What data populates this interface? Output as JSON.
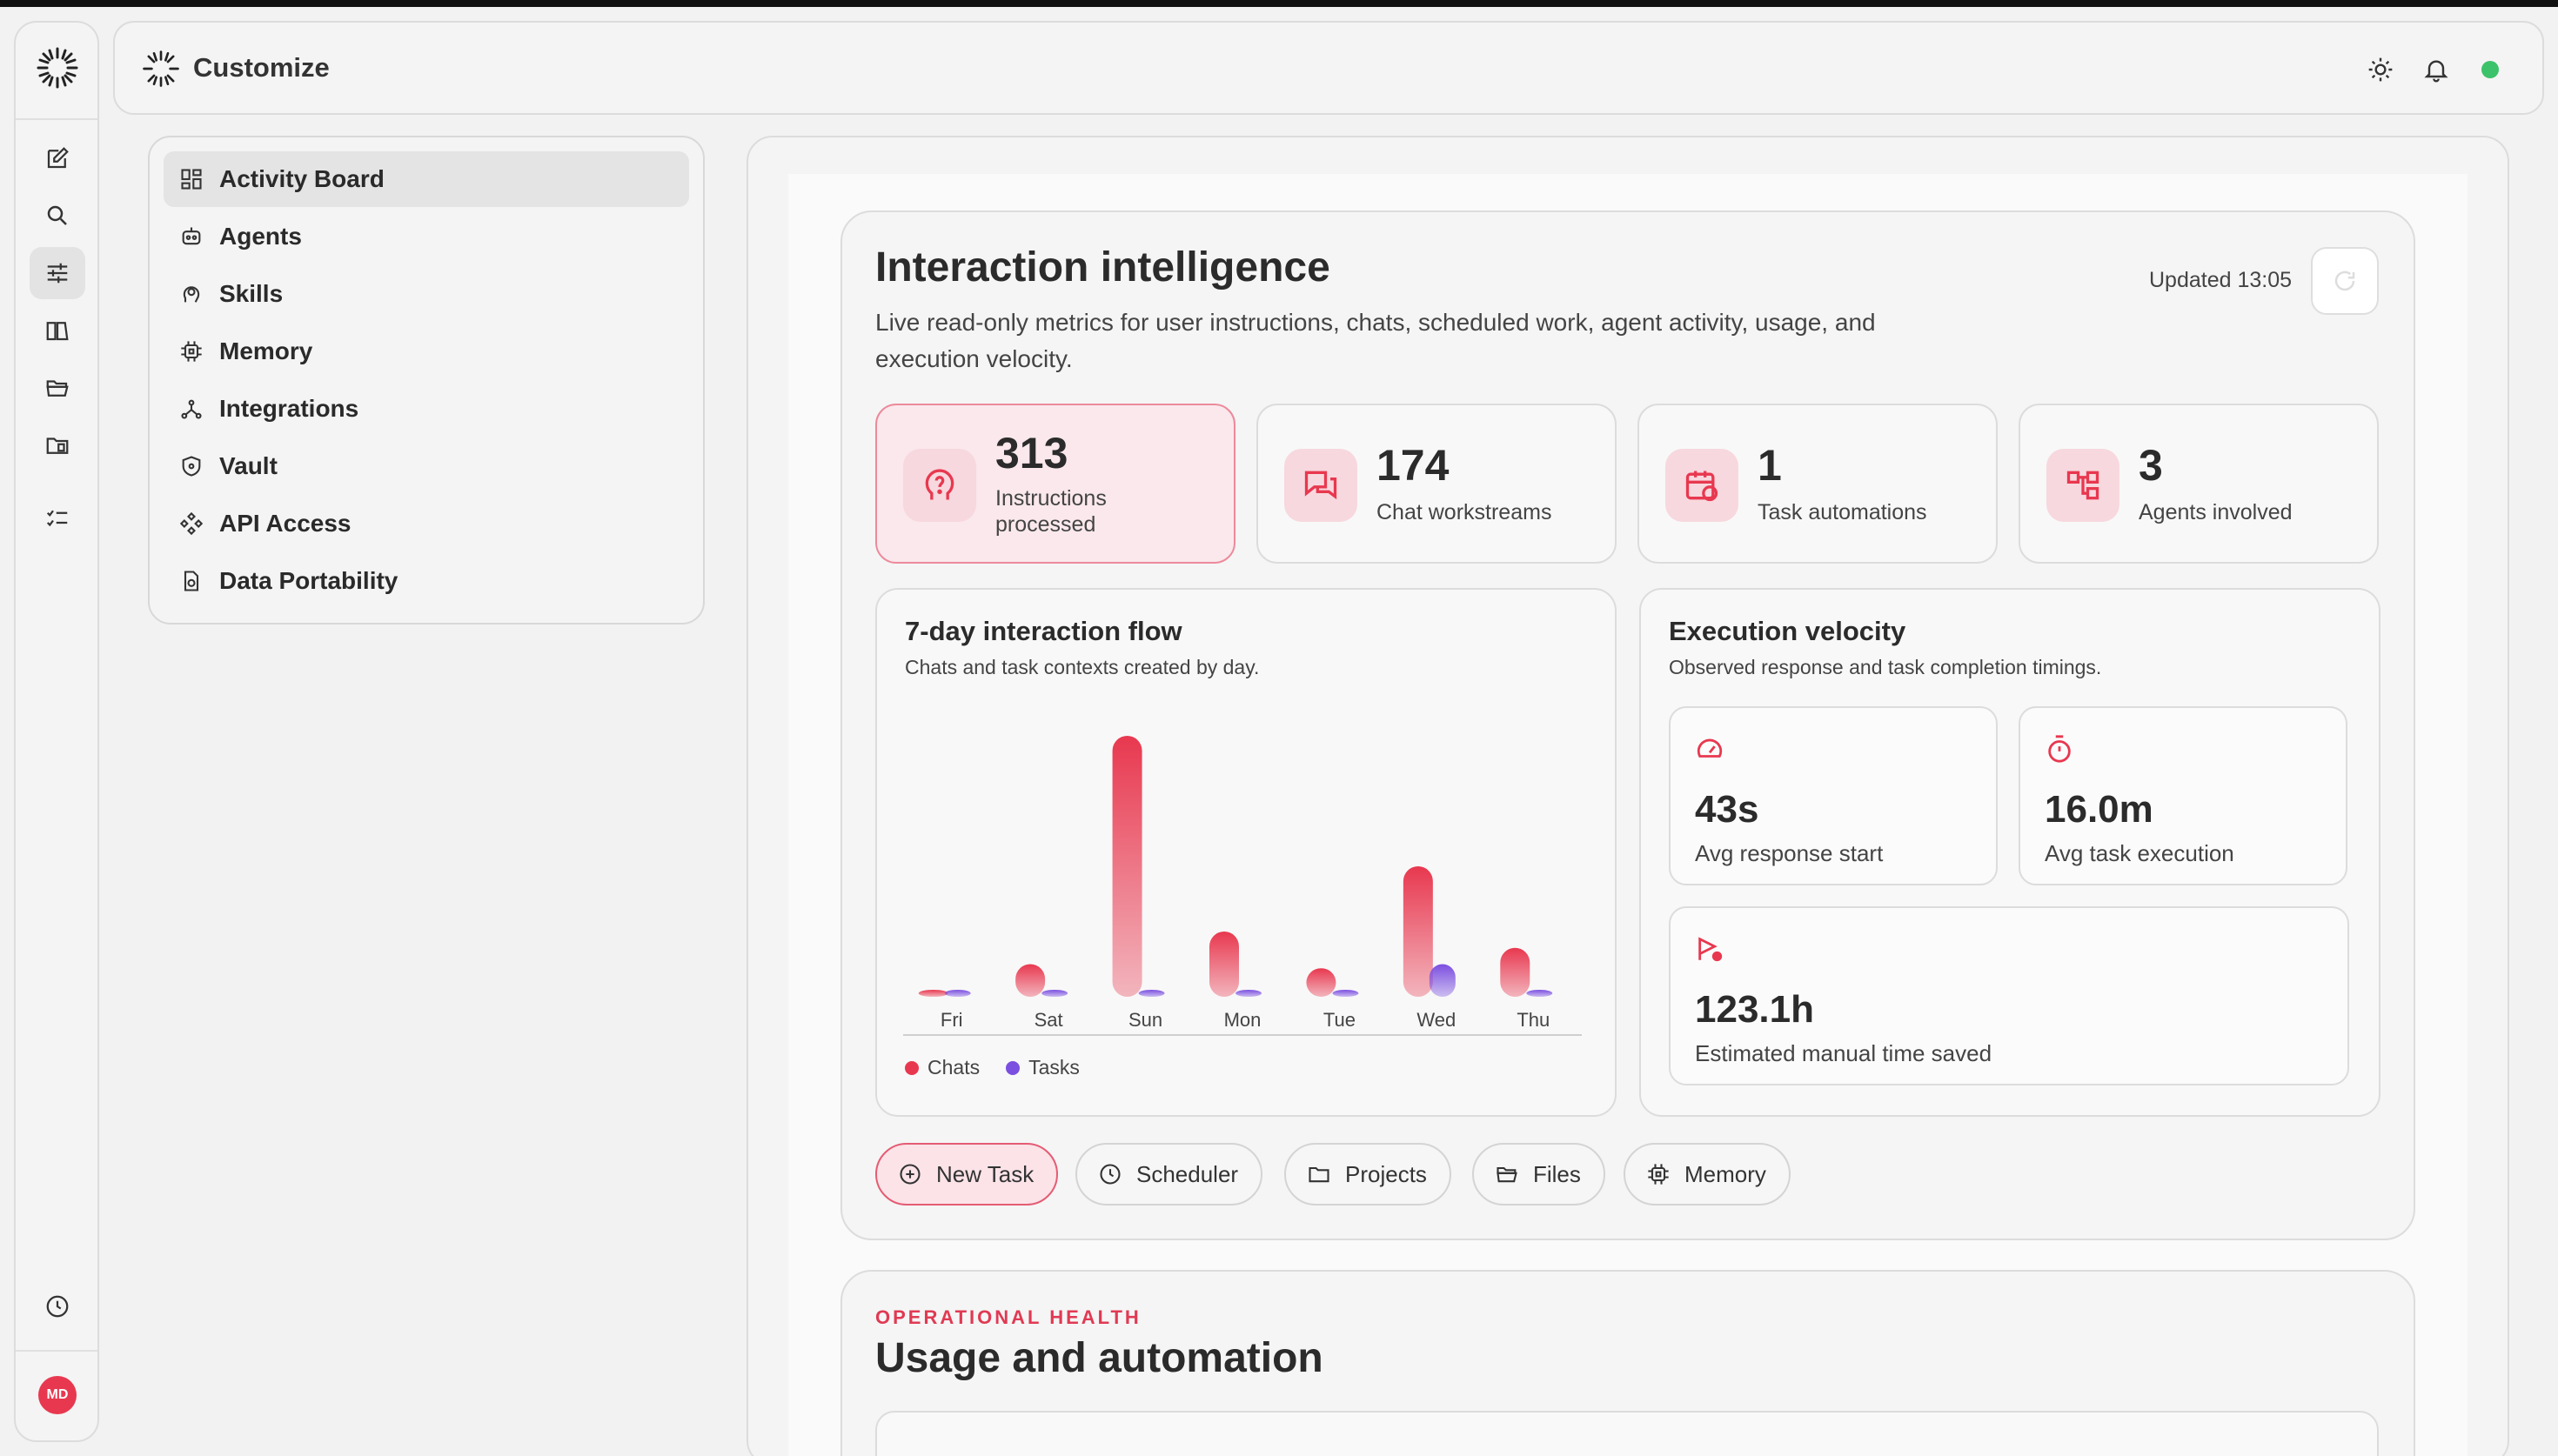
{
  "header": {
    "title": "Customize"
  },
  "user": {
    "initials": "MD"
  },
  "colors": {
    "accent": "#e8384f",
    "chats": "#e8384f",
    "tasks": "#7b4fe0",
    "status_online": "#3cc26a"
  },
  "nav": {
    "items": [
      {
        "label": "Activity Board",
        "icon": "dashboard-icon",
        "active": true
      },
      {
        "label": "Agents",
        "icon": "robot-icon"
      },
      {
        "label": "Skills",
        "icon": "brain-icon"
      },
      {
        "label": "Memory",
        "icon": "chip-icon"
      },
      {
        "label": "Integrations",
        "icon": "network-icon"
      },
      {
        "label": "Vault",
        "icon": "shield-icon"
      },
      {
        "label": "API Access",
        "icon": "api-icon"
      },
      {
        "label": "Data Portability",
        "icon": "file-export-icon"
      }
    ]
  },
  "main": {
    "title": "Interaction intelligence",
    "description": "Live read-only metrics for user instructions, chats, scheduled work, agent activity, usage, and execution velocity.",
    "updated": "Updated 13:05",
    "stats": [
      {
        "value": "313",
        "label": "Instructions processed",
        "icon": "question-head-icon"
      },
      {
        "value": "174",
        "label": "Chat workstreams",
        "icon": "chat-bubbles-icon"
      },
      {
        "value": "1",
        "label": "Task automations",
        "icon": "calendar-repeat-icon"
      },
      {
        "value": "3",
        "label": "Agents involved",
        "icon": "hierarchy-icon"
      }
    ],
    "flow": {
      "title": "7-day interaction flow",
      "subtitle": "Chats and task contexts created by day."
    },
    "velocity": {
      "title": "Execution velocity",
      "subtitle": "Observed response and task completion timings.",
      "metrics": [
        {
          "value": "43s",
          "label": "Avg response start",
          "icon": "gauge-icon"
        },
        {
          "value": "16.0m",
          "label": "Avg task execution",
          "icon": "stopwatch-icon"
        },
        {
          "value": "123.1h",
          "label": "Estimated manual time saved",
          "icon": "flag-clock-icon"
        }
      ]
    },
    "actions": [
      {
        "label": "New Task",
        "icon": "plus-circle-icon"
      },
      {
        "label": "Scheduler",
        "icon": "clock-icon"
      },
      {
        "label": "Projects",
        "icon": "folder-icon"
      },
      {
        "label": "Files",
        "icon": "folder-open-icon"
      },
      {
        "label": "Memory",
        "icon": "chip-icon"
      }
    ]
  },
  "operational": {
    "eyebrow": "OPERATIONAL HEALTH",
    "title": "Usage and automation"
  },
  "chart_data": {
    "type": "bar",
    "categories": [
      "Fri",
      "Sat",
      "Sun",
      "Mon",
      "Tue",
      "Wed",
      "Thu"
    ],
    "series": [
      {
        "name": "Chats",
        "values": [
          1,
          8,
          64,
          16,
          7,
          32,
          12
        ]
      },
      {
        "name": "Tasks",
        "values": [
          1,
          1,
          1,
          1,
          1,
          8,
          1
        ]
      }
    ],
    "ylim": [
      0,
      64
    ],
    "legend": "bottom-left",
    "grid": false
  }
}
